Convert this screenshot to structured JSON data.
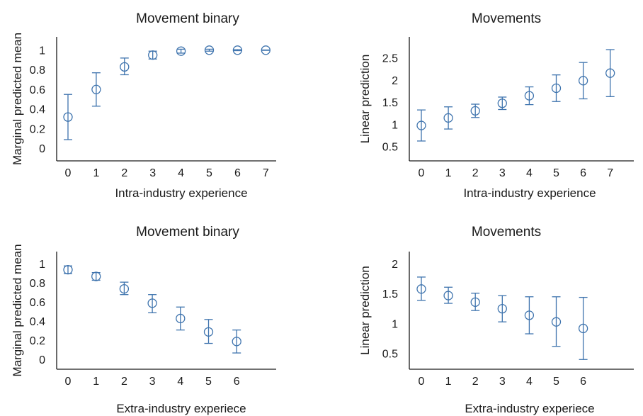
{
  "colors": {
    "series": "#3f74ae",
    "axis": "#1a1a1a"
  },
  "chart_data": [
    {
      "type": "scatter",
      "title": "Movement binary",
      "xlabel": "Intra-industry experience",
      "ylabel": "Marginal predicted mean",
      "x": [
        0,
        1,
        2,
        3,
        4,
        5,
        6,
        7
      ],
      "y": [
        0.32,
        0.6,
        0.83,
        0.95,
        0.99,
        1.0,
        1.0,
        1.0
      ],
      "ci_low": [
        0.09,
        0.43,
        0.75,
        0.91,
        0.97,
        0.99,
        0.995,
        0.998
      ],
      "ci_high": [
        0.55,
        0.77,
        0.92,
        0.99,
        1.01,
        1.01,
        1.005,
        1.002
      ],
      "x_ticks": [
        "0",
        "1",
        "2",
        "3",
        "4",
        "5",
        "6",
        "7"
      ],
      "y_ticks": [
        "0",
        "0.2",
        "0.4",
        "0.6",
        "0.8",
        "1"
      ],
      "ylim": [
        -0.1,
        1.12
      ],
      "grid": false
    },
    {
      "type": "scatter",
      "title": "Movements",
      "xlabel": "Intra-industry experience",
      "ylabel": "Linear prediction",
      "x": [
        0,
        1,
        2,
        3,
        4,
        5,
        6,
        7
      ],
      "y": [
        0.98,
        1.15,
        1.31,
        1.48,
        1.65,
        1.82,
        1.99,
        2.16
      ],
      "ci_low": [
        0.63,
        0.9,
        1.16,
        1.34,
        1.45,
        1.52,
        1.58,
        1.63
      ],
      "ci_high": [
        1.33,
        1.4,
        1.46,
        1.62,
        1.85,
        2.12,
        2.4,
        2.69
      ],
      "x_ticks": [
        "0",
        "1",
        "2",
        "3",
        "4",
        "5",
        "6",
        "7"
      ],
      "y_ticks": [
        "0.5",
        "1",
        "1.5",
        "2",
        "2.5"
      ],
      "ylim": [
        0.25,
        2.85
      ],
      "grid": false
    },
    {
      "type": "scatter",
      "title": "Movement binary",
      "xlabel": "Extra-industry experiece",
      "ylabel": "Marginal predicted mean",
      "x": [
        0,
        1,
        2,
        3,
        4,
        5,
        6
      ],
      "y": [
        0.94,
        0.87,
        0.74,
        0.59,
        0.43,
        0.29,
        0.19
      ],
      "ci_low": [
        0.9,
        0.83,
        0.68,
        0.49,
        0.31,
        0.17,
        0.07
      ],
      "ci_high": [
        0.98,
        0.91,
        0.81,
        0.68,
        0.55,
        0.42,
        0.31
      ],
      "x_ticks": [
        "0",
        "1",
        "2",
        "3",
        "4",
        "5",
        "6"
      ],
      "y_ticks": [
        "0",
        "0.2",
        "0.4",
        "0.6",
        "0.8",
        "1"
      ],
      "ylim": [
        -0.1,
        1.12
      ],
      "grid": false
    },
    {
      "type": "scatter",
      "title": "Movements",
      "xlabel": "Extra-industry experiece",
      "ylabel": "Linear prediction",
      "x": [
        0,
        1,
        2,
        3,
        4,
        5,
        6
      ],
      "y": [
        1.58,
        1.47,
        1.36,
        1.25,
        1.14,
        1.03,
        0.92
      ],
      "ci_low": [
        1.39,
        1.34,
        1.22,
        1.03,
        0.83,
        0.62,
        0.4
      ],
      "ci_high": [
        1.78,
        1.61,
        1.51,
        1.47,
        1.45,
        1.45,
        1.44
      ],
      "x_ticks": [
        "0",
        "1",
        "2",
        "3",
        "4",
        "5",
        "6"
      ],
      "y_ticks": [
        "0.5",
        "1",
        "1.5",
        "2"
      ],
      "ylim": [
        0.25,
        2.2
      ],
      "grid": false
    }
  ]
}
